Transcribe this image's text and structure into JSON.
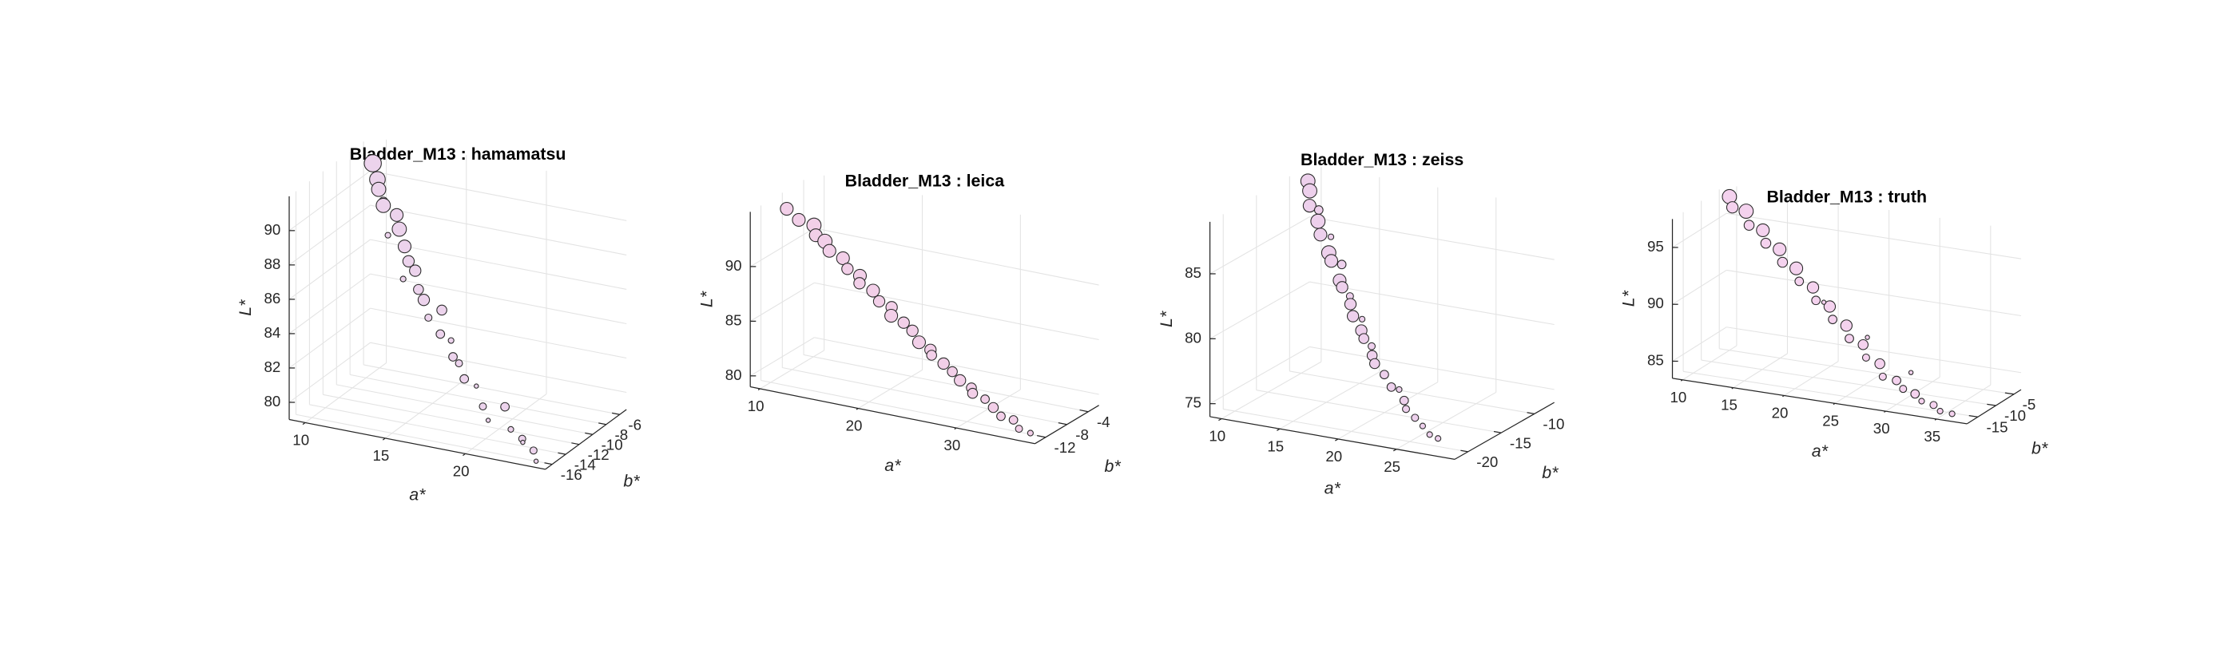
{
  "chart_data": [
    {
      "type": "scatter3d",
      "title": "Bladder_M13 : hamamatsu",
      "xlabel": "a*",
      "ylabel": "b*",
      "zlabel": "L*",
      "color": "#ecd3ec",
      "grid": true,
      "xlim": [
        9,
        25
      ],
      "ylim": [
        -17,
        -5
      ],
      "zlim": [
        79,
        92
      ],
      "xticks": [
        10,
        15,
        20
      ],
      "yticks": [
        -16,
        -14,
        -12,
        -10,
        -8,
        -6
      ],
      "zticks": [
        80,
        82,
        84,
        86,
        88,
        90
      ],
      "x": [
        10,
        10.5,
        11,
        11,
        11.5,
        12,
        12,
        12.5,
        13,
        13.5,
        13.5,
        14,
        14.5,
        15,
        15.5,
        16,
        16.5,
        17,
        17.5,
        18,
        18.5,
        19,
        20,
        20.5,
        21,
        22,
        22.5,
        23,
        23.5,
        24
      ],
      "y": [
        -7,
        -7.5,
        -8.5,
        -7.8,
        -9,
        -8.2,
        -9.5,
        -9,
        -9.4,
        -10,
        -10.8,
        -10.2,
        -10.9,
        -11.3,
        -11.8,
        -11,
        -12.4,
        -12,
        -12.9,
        -13.2,
        -13.6,
        -13,
        -14.4,
        -14.8,
        -13.5,
        -15,
        -14.5,
        -15.6,
        -15.2,
        -16
      ],
      "z": [
        91.2,
        90.5,
        90.3,
        89.4,
        89.6,
        88.9,
        88.1,
        88.4,
        87.6,
        87,
        86.2,
        86.6,
        85.8,
        85.4,
        84.6,
        84.9,
        84,
        83.6,
        83,
        82.8,
        82.1,
        81.6,
        81,
        80.4,
        80.9,
        80.2,
        79.6,
        79.8,
        79.3,
        79
      ],
      "sizes": [
        6,
        5.5,
        5,
        3,
        5,
        4.5,
        2,
        5,
        4.5,
        4,
        2,
        4,
        3.5,
        4,
        2.5,
        3.5,
        3,
        2,
        3,
        2.5,
        3,
        1.5,
        2.5,
        1.5,
        3,
        2,
        2.5,
        1.5,
        2.5,
        1.5
      ]
    },
    {
      "type": "scatter3d",
      "title": "Bladder_M13 : leica",
      "xlabel": "a*",
      "ylabel": "b*",
      "zlabel": "L*",
      "color": "#f2cfe8",
      "grid": true,
      "xlim": [
        9,
        38
      ],
      "ylim": [
        -14,
        -2
      ],
      "zlim": [
        79,
        95
      ],
      "xticks": [
        10,
        20,
        30
      ],
      "yticks": [
        -12,
        -8,
        -4
      ],
      "zticks": [
        80,
        85,
        90
      ],
      "x": [
        10,
        11.5,
        12.5,
        13.5,
        14,
        15,
        16,
        17,
        18,
        18.5,
        19.5,
        20.5,
        21.5,
        22,
        23,
        24,
        25,
        26,
        26.5,
        27.5,
        28.5,
        29.5,
        30.5,
        31,
        32,
        33,
        34,
        35,
        36,
        37
      ],
      "y": [
        -9,
        -9.5,
        -8.5,
        -10,
        -9.2,
        -10.2,
        -9.5,
        -10.5,
        -10,
        -11,
        -10.3,
        -11,
        -10.5,
        -11.5,
        -11,
        -11.2,
        -11.8,
        -11.5,
        -12.2,
        -11.8,
        -12,
        -12.4,
        -12.1,
        -12.8,
        -12.3,
        -12.6,
        -13,
        -12.5,
        -13.3,
        -13
      ],
      "z": [
        94,
        93.4,
        92.8,
        92.5,
        91.8,
        91.4,
        90.7,
        90.2,
        89.6,
        89.3,
        88.6,
        88,
        87.5,
        87.1,
        86.5,
        86,
        85.3,
        84.7,
        84.5,
        83.8,
        83.3,
        82.8,
        82.2,
        82,
        81.5,
        81,
        80.5,
        80.2,
        79.8,
        79.5
      ],
      "sizes": [
        4.5,
        4.5,
        5,
        4.5,
        5,
        4.5,
        4.5,
        4,
        4.5,
        4,
        4.5,
        4,
        4,
        4.5,
        4,
        4,
        4.5,
        4,
        3.5,
        4,
        3.5,
        4,
        3.5,
        3.5,
        3,
        3.5,
        3,
        3,
        2.5,
        2
      ]
    },
    {
      "type": "scatter3d",
      "title": "Bladder_M13 : zeiss",
      "xlabel": "a*",
      "ylabel": "b*",
      "zlabel": "L*",
      "color": "#edd0ec",
      "grid": true,
      "xlim": [
        9,
        30
      ],
      "ylim": [
        -22,
        -7
      ],
      "zlim": [
        74,
        89
      ],
      "xticks": [
        10,
        15,
        20,
        25
      ],
      "yticks": [
        -20,
        -15,
        -10
      ],
      "zticks": [
        75,
        80,
        85
      ],
      "x": [
        10,
        10.5,
        11,
        11.5,
        12,
        12.5,
        13,
        13.5,
        14,
        14.5,
        15,
        15.5,
        16,
        16.5,
        17,
        17.5,
        18,
        18.5,
        19,
        19.5,
        20,
        21,
        22,
        22.5,
        23.5,
        24,
        25,
        26,
        27,
        28
      ],
      "y": [
        -9,
        -9.6,
        -10.5,
        -10,
        -11,
        -11.5,
        -10.8,
        -12,
        -12.5,
        -11.8,
        -13,
        -13.5,
        -13.2,
        -14,
        -14.5,
        -14,
        -15,
        -15.5,
        -15.2,
        -16,
        -16.5,
        -16.8,
        -17.5,
        -17.2,
        -18.2,
        -18.8,
        -19.2,
        -19.8,
        -20.5,
        -21
      ],
      "z": [
        88.5,
        88,
        87.2,
        86.8,
        86.3,
        85.5,
        85.2,
        84.4,
        84,
        83.6,
        82.8,
        82.5,
        81.8,
        81.5,
        80.8,
        80.5,
        80,
        79.6,
        79,
        78.6,
        78.2,
        77.6,
        77,
        76.8,
        76.4,
        76,
        75.6,
        75.3,
        75,
        75
      ],
      "sizes": [
        5,
        5,
        4.5,
        3,
        5,
        4.5,
        2,
        5,
        4.5,
        3,
        4.5,
        4,
        2.5,
        4,
        4,
        2,
        4,
        3.5,
        2.5,
        3.5,
        3.5,
        3,
        3,
        2,
        3,
        2.5,
        2.5,
        2,
        2,
        2
      ]
    },
    {
      "type": "scatter3d",
      "title": "Bladder_M13 : truth",
      "xlabel": "a*",
      "ylabel": "b*",
      "zlabel": "L*",
      "color": "#f4d2ee",
      "grid": true,
      "xlim": [
        9,
        38
      ],
      "ylim": [
        -18,
        -3
      ],
      "zlim": [
        83.5,
        97.5
      ],
      "xticks": [
        10,
        15,
        20,
        25,
        30,
        35
      ],
      "yticks": [
        -15,
        -10,
        -5
      ],
      "zticks": [
        85,
        90,
        95
      ],
      "x": [
        10,
        11,
        12,
        13,
        14,
        15,
        16,
        17,
        18,
        19,
        20,
        21,
        22,
        23,
        24,
        25,
        26,
        27,
        28,
        29,
        30,
        31,
        32,
        33,
        34,
        35,
        36,
        20,
        25,
        30
      ],
      "y": [
        -5,
        -7,
        -6,
        -8,
        -7,
        -9,
        -8,
        -10,
        -9,
        -11,
        -10,
        -12,
        -11,
        -13,
        -12,
        -14,
        -13,
        -15,
        -14,
        -16,
        -15,
        -16,
        -15.5,
        -16.5,
        -16,
        -17,
        -16.5,
        -7,
        -9,
        -11
      ],
      "z": [
        97,
        96.6,
        96.2,
        95.5,
        95,
        94.4,
        93.8,
        93.2,
        92.6,
        92,
        91.4,
        90.8,
        90.2,
        89.6,
        89,
        88.4,
        87.8,
        87.2,
        86.6,
        86,
        85.6,
        85.2,
        84.8,
        84.5,
        84.2,
        84,
        83.8,
        89.5,
        87.5,
        85.5
      ],
      "sizes": [
        5,
        4,
        5,
        3.5,
        4.5,
        3.5,
        4.5,
        3.5,
        4.5,
        3,
        4,
        3,
        4,
        3,
        4,
        3,
        3.5,
        2.5,
        3.5,
        2.5,
        3,
        2.5,
        3,
        2,
        2.5,
        2,
        2,
        1.5,
        1.5,
        1.5
      ]
    }
  ]
}
